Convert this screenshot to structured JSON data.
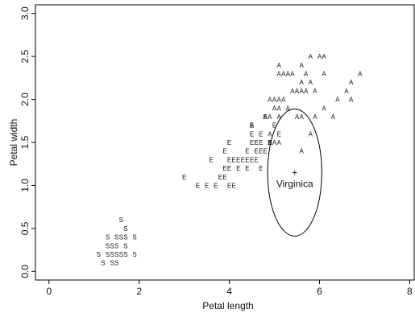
{
  "chart_data": {
    "type": "scatter",
    "title": "",
    "xlabel": "Petal length",
    "ylabel": "Petal width",
    "xlim": [
      -0.3,
      8.1
    ],
    "ylim": [
      -0.1,
      3.1
    ],
    "xticks": [
      0,
      2,
      4,
      6,
      8
    ],
    "yticks": [
      0.0,
      0.5,
      1.0,
      1.5,
      2.0,
      2.5,
      3.0
    ],
    "xtick_labels": [
      "0",
      "2",
      "4",
      "6",
      "8"
    ],
    "ytick_labels": [
      "0.0",
      "0.5",
      "1.0",
      "1.5",
      "2.0",
      "2.5",
      "3.0"
    ],
    "grid": false,
    "legend": "none",
    "series": [
      {
        "marker": "S",
        "points": [
          [
            1.6,
            0.6
          ],
          [
            1.7,
            0.5
          ],
          [
            1.3,
            0.4
          ],
          [
            1.5,
            0.4
          ],
          [
            1.6,
            0.4
          ],
          [
            1.7,
            0.4
          ],
          [
            1.9,
            0.4
          ],
          [
            1.3,
            0.3
          ],
          [
            1.4,
            0.3
          ],
          [
            1.5,
            0.3
          ],
          [
            1.7,
            0.3
          ],
          [
            1.1,
            0.2
          ],
          [
            1.3,
            0.2
          ],
          [
            1.4,
            0.2
          ],
          [
            1.5,
            0.2
          ],
          [
            1.6,
            0.2
          ],
          [
            1.7,
            0.2
          ],
          [
            1.9,
            0.2
          ],
          [
            1.2,
            0.1
          ],
          [
            1.4,
            0.1
          ],
          [
            1.5,
            0.1
          ]
        ]
      },
      {
        "marker": "E",
        "points": [
          [
            4.5,
            1.7
          ],
          [
            4.8,
            1.8
          ],
          [
            4.9,
            1.5
          ],
          [
            5.0,
            1.7
          ],
          [
            5.1,
            1.6
          ],
          [
            4.5,
            1.6
          ],
          [
            4.7,
            1.6
          ],
          [
            4.0,
            1.5
          ],
          [
            4.5,
            1.5
          ],
          [
            4.6,
            1.5
          ],
          [
            4.7,
            1.5
          ],
          [
            4.9,
            1.5
          ],
          [
            3.9,
            1.4
          ],
          [
            4.4,
            1.4
          ],
          [
            4.6,
            1.4
          ],
          [
            4.7,
            1.4
          ],
          [
            4.8,
            1.4
          ],
          [
            3.6,
            1.3
          ],
          [
            4.0,
            1.3
          ],
          [
            4.1,
            1.3
          ],
          [
            4.2,
            1.3
          ],
          [
            4.3,
            1.3
          ],
          [
            4.4,
            1.3
          ],
          [
            4.5,
            1.3
          ],
          [
            4.6,
            1.3
          ],
          [
            3.9,
            1.2
          ],
          [
            4.0,
            1.2
          ],
          [
            4.2,
            1.2
          ],
          [
            4.4,
            1.2
          ],
          [
            4.7,
            1.2
          ],
          [
            3.0,
            1.1
          ],
          [
            3.8,
            1.1
          ],
          [
            3.9,
            1.1
          ],
          [
            3.3,
            1.0
          ],
          [
            3.5,
            1.0
          ],
          [
            3.7,
            1.0
          ],
          [
            4.0,
            1.0
          ],
          [
            4.1,
            1.0
          ]
        ]
      },
      {
        "marker": "A",
        "points": [
          [
            5.8,
            2.5
          ],
          [
            6.0,
            2.5
          ],
          [
            6.1,
            2.5
          ],
          [
            5.1,
            2.4
          ],
          [
            5.6,
            2.4
          ],
          [
            5.1,
            2.3
          ],
          [
            5.2,
            2.3
          ],
          [
            5.3,
            2.3
          ],
          [
            5.4,
            2.3
          ],
          [
            5.7,
            2.3
          ],
          [
            6.1,
            2.3
          ],
          [
            6.9,
            2.3
          ],
          [
            5.6,
            2.2
          ],
          [
            5.8,
            2.2
          ],
          [
            6.7,
            2.2
          ],
          [
            5.4,
            2.1
          ],
          [
            5.5,
            2.1
          ],
          [
            5.6,
            2.1
          ],
          [
            5.7,
            2.1
          ],
          [
            5.9,
            2.1
          ],
          [
            6.6,
            2.1
          ],
          [
            4.9,
            2.0
          ],
          [
            5.0,
            2.0
          ],
          [
            5.1,
            2.0
          ],
          [
            5.2,
            2.0
          ],
          [
            6.4,
            2.0
          ],
          [
            6.7,
            2.0
          ],
          [
            5.0,
            1.9
          ],
          [
            5.1,
            1.9
          ],
          [
            5.3,
            1.9
          ],
          [
            6.1,
            1.9
          ],
          [
            4.8,
            1.8
          ],
          [
            4.9,
            1.8
          ],
          [
            5.1,
            1.8
          ],
          [
            5.5,
            1.8
          ],
          [
            5.6,
            1.8
          ],
          [
            5.9,
            1.8
          ],
          [
            6.3,
            1.8
          ],
          [
            4.5,
            1.7
          ],
          [
            4.9,
            1.6
          ],
          [
            5.8,
            1.6
          ],
          [
            4.9,
            1.5
          ],
          [
            5.0,
            1.5
          ],
          [
            5.1,
            1.5
          ],
          [
            5.6,
            1.4
          ]
        ]
      }
    ],
    "annotations": [
      {
        "text": "+",
        "x": 5.45,
        "y": 1.15
      },
      {
        "text": "Virginica",
        "x": 5.45,
        "y": 1.02
      }
    ],
    "ellipse": {
      "cx": 5.45,
      "cy": 1.15,
      "rx": 0.6,
      "ry": 0.74
    }
  }
}
